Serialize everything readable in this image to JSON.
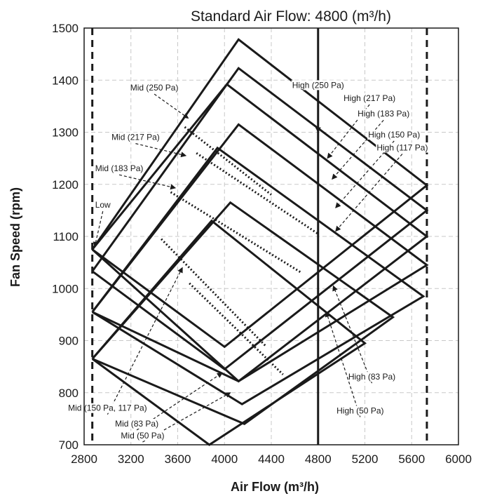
{
  "chart_data": {
    "type": "line",
    "title": "Standard Air Flow: 4800 (m³/h)",
    "xlabel": "Air Flow (m³/h)",
    "ylabel": "Fan Speed (rpm)",
    "xlim": [
      2800,
      6000
    ],
    "ylim": [
      700,
      1500
    ],
    "x_ticks": [
      2800,
      3200,
      3600,
      4000,
      4400,
      4800,
      5200,
      5600,
      6000
    ],
    "y_ticks": [
      700,
      800,
      900,
      1000,
      1100,
      1200,
      1300,
      1400,
      1500
    ],
    "grid": true,
    "vertical_lines": [
      {
        "x": 2870,
        "style": "dashed"
      },
      {
        "x": 4800,
        "style": "solid"
      },
      {
        "x": 5730,
        "style": "dashed"
      }
    ],
    "series": [
      {
        "points": [
          [
            2870,
            1075
          ],
          [
            4120,
            1478
          ],
          [
            5730,
            1198
          ],
          [
            4000,
            888
          ],
          [
            2870,
            1075
          ]
        ]
      },
      {
        "points": [
          [
            2870,
            1033
          ],
          [
            4120,
            1423
          ],
          [
            5730,
            1150
          ],
          [
            4000,
            845
          ],
          [
            2870,
            1033
          ]
        ]
      },
      {
        "points": [
          [
            2870,
            1075
          ],
          [
            4020,
            1392
          ],
          [
            5730,
            1100
          ],
          [
            4120,
            822
          ],
          [
            2870,
            1075
          ]
        ]
      },
      {
        "points": [
          [
            2870,
            955
          ],
          [
            4120,
            1315
          ],
          [
            5730,
            1045
          ],
          [
            4120,
            822
          ],
          [
            2870,
            955
          ]
        ]
      },
      {
        "points": [
          [
            2870,
            955
          ],
          [
            3940,
            1270
          ],
          [
            5700,
            985
          ],
          [
            4150,
            778
          ],
          [
            2870,
            955
          ]
        ]
      },
      {
        "points": [
          [
            2870,
            865
          ],
          [
            4050,
            1165
          ],
          [
            5440,
            945
          ],
          [
            4170,
            740
          ],
          [
            2870,
            865
          ]
        ]
      },
      {
        "points": [
          [
            2870,
            865
          ],
          [
            3890,
            1130
          ],
          [
            5200,
            895
          ],
          [
            3870,
            700
          ],
          [
            2870,
            865
          ]
        ]
      }
    ],
    "dotted_lines": [
      {
        "points": [
          [
            3660,
            1310
          ],
          [
            4400,
            1180
          ]
        ]
      },
      {
        "points": [
          [
            3760,
            1260
          ],
          [
            4800,
            1105
          ]
        ]
      },
      {
        "points": [
          [
            3540,
            1185
          ],
          [
            4660,
            1030
          ]
        ]
      },
      {
        "points": [
          [
            3460,
            1095
          ],
          [
            4350,
            890
          ]
        ]
      },
      {
        "points": [
          [
            3700,
            1010
          ],
          [
            4500,
            835
          ]
        ]
      }
    ],
    "annotations": [
      {
        "text": "High (250 Pa)",
        "x": 4800,
        "y": 1385,
        "ax": 4800,
        "ay": 1300
      },
      {
        "text": "High (217 Pa)",
        "x": 5240,
        "y": 1360,
        "ax": 4880,
        "ay": 1250
      },
      {
        "text": "High (183 Pa)",
        "x": 5360,
        "y": 1330,
        "ax": 4920,
        "ay": 1210
      },
      {
        "text": "High (150 Pa)",
        "x": 5450,
        "y": 1290,
        "ax": 4950,
        "ay": 1155
      },
      {
        "text": "High (117 Pa)",
        "x": 5520,
        "y": 1265,
        "ax": 4950,
        "ay": 1110
      },
      {
        "text": "Mid (250 Pa)",
        "x": 3400,
        "y": 1380,
        "ax": 3690,
        "ay": 1327
      },
      {
        "text": "Mid (217 Pa)",
        "x": 3240,
        "y": 1285,
        "ax": 3670,
        "ay": 1255
      },
      {
        "text": "Mid (183 Pa)",
        "x": 3100,
        "y": 1225,
        "ax": 3580,
        "ay": 1193
      },
      {
        "text": "Low",
        "x": 2960,
        "y": 1155,
        "ax": 2890,
        "ay": 1080
      },
      {
        "text": "High (83 Pa)",
        "x": 5260,
        "y": 825,
        "ax": 4930,
        "ay": 1005
      },
      {
        "text": "High (50 Pa)",
        "x": 5160,
        "y": 760,
        "ax": 4870,
        "ay": 955
      },
      {
        "text": "Mid (150 Pa, 117 Pa)",
        "x": 3000,
        "y": 765,
        "ax": 3640,
        "ay": 1040
      },
      {
        "text": "Mid (83 Pa)",
        "x": 3250,
        "y": 735,
        "ax": 3980,
        "ay": 838
      },
      {
        "text": "Mid (50 Pa)",
        "x": 3300,
        "y": 712,
        "ax": 4050,
        "ay": 800
      }
    ]
  }
}
